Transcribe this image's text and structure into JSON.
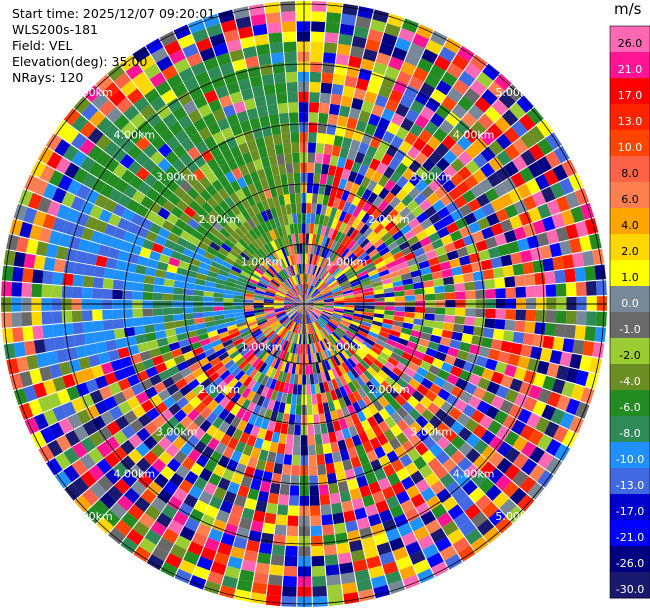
{
  "info": {
    "start_time": "Start time: 2025/12/07 09:20:01",
    "instrument": "WLS200s-181",
    "field": "Field: VEL",
    "elevation": "Elevation(deg): 35.00",
    "nrays": "NRays: 120"
  },
  "chart_data": {
    "type": "heatmap",
    "projection": "polar-ppi",
    "title": "",
    "field": "VEL",
    "elevation_deg": 35.0,
    "n_rays": 120,
    "max_range_km": 5.0,
    "range_rings_km": [
      1.0,
      2.0,
      3.0,
      4.0,
      5.0
    ],
    "range_ring_labels": [
      "1.00km",
      "2.00km",
      "3.00km",
      "4.00km",
      "5.00km"
    ],
    "colorbar": {
      "unit": "m/s",
      "ticks": [
        "26.0",
        "21.0",
        "17.0",
        "13.0",
        "10.0",
        "8.0",
        "6.0",
        "4.0",
        "2.0",
        "1.0",
        "0.0",
        "-1.0",
        "-2.0",
        "-4.0",
        "-6.0",
        "-8.0",
        "-10.0",
        "-13.0",
        "-17.0",
        "-21.0",
        "-26.0",
        "-30.0"
      ],
      "colors": [
        "#ff69b4",
        "#ff1493",
        "#ff0000",
        "#ff2400",
        "#ff4500",
        "#ff6347",
        "#ff7f50",
        "#ffa500",
        "#ffd700",
        "#ffff00",
        "#778899",
        "#696969",
        "#9acd32",
        "#6b8e23",
        "#228b22",
        "#2e8b57",
        "#1e90ff",
        "#4169e1",
        "#0000cd",
        "#0000ff",
        "#000080",
        "#191970"
      ]
    },
    "sector_pattern": {
      "northwest_dominant": "negative velocities (-4 to -10 m/s)",
      "elsewhere": "noisy mixed values across full scale"
    }
  }
}
